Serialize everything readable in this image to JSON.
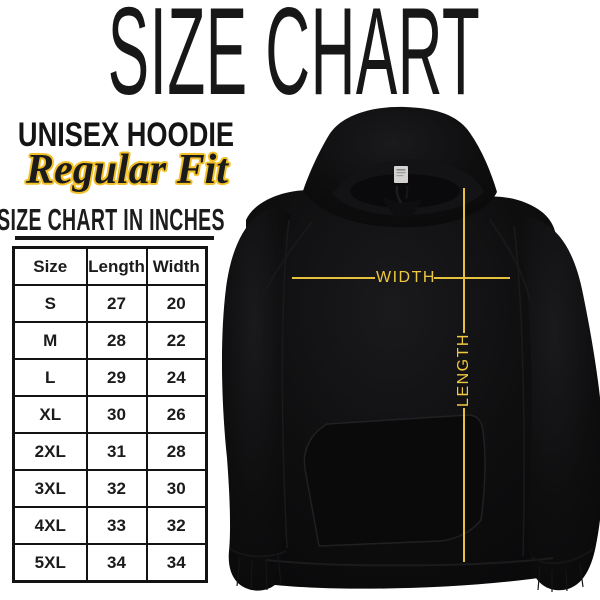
{
  "page": {
    "title": "SIZE CHART"
  },
  "header": {
    "product": "UNISEX HOODIE",
    "fit": "Regular Fit",
    "table_caption": "SIZE CHART IN INCHES"
  },
  "size_table": {
    "headers": [
      "Size",
      "Length",
      "Width"
    ],
    "rows": [
      [
        "S",
        "27",
        "20"
      ],
      [
        "M",
        "28",
        "22"
      ],
      [
        "L",
        "29",
        "24"
      ],
      [
        "XL",
        "30",
        "26"
      ],
      [
        "2XL",
        "31",
        "28"
      ],
      [
        "3XL",
        "32",
        "30"
      ],
      [
        "4XL",
        "33",
        "32"
      ],
      [
        "5XL",
        "34",
        "34"
      ]
    ]
  },
  "measurements": {
    "width_label": "WIDTH",
    "length_label": "LENGTH"
  },
  "colors": {
    "background": "#ffffff",
    "ink": "#1a1a1a",
    "accent_gold_line": "#e7c03d",
    "accent_gold_text": "#efc83f",
    "fit_outline_gold": "#f2c027",
    "hoodie_black": "#0c0c0d"
  },
  "chart_data": {
    "type": "table",
    "title": "SIZE CHART",
    "subtitle": "UNISEX HOODIE — Regular Fit",
    "units": "inches",
    "columns": [
      "Size",
      "Length",
      "Width"
    ],
    "rows": [
      [
        "S",
        27,
        20
      ],
      [
        "M",
        28,
        22
      ],
      [
        "L",
        29,
        24
      ],
      [
        "XL",
        30,
        26
      ],
      [
        "2XL",
        31,
        28
      ],
      [
        "3XL",
        32,
        30
      ],
      [
        "4XL",
        33,
        32
      ],
      [
        "5XL",
        34,
        34
      ]
    ]
  }
}
